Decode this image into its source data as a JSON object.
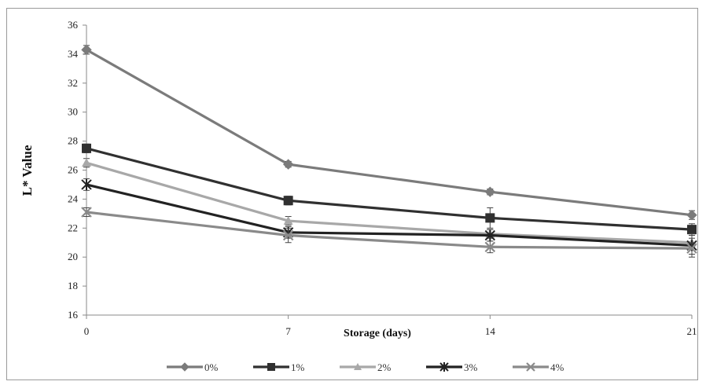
{
  "chart_data": {
    "type": "line",
    "title": "",
    "xlabel": "Storage (days)",
    "ylabel": "L* Value",
    "x": [
      0,
      7,
      14,
      21
    ],
    "x_tick_labels": [
      "0",
      "7",
      "14",
      "21"
    ],
    "ylim": [
      16,
      36
    ],
    "y_ticks": [
      16,
      18,
      20,
      22,
      24,
      26,
      28,
      30,
      32,
      34,
      36
    ],
    "grid": false,
    "legend_position": "bottom",
    "series": [
      {
        "name": "0%",
        "values": [
          34.3,
          26.4,
          24.5,
          22.9
        ],
        "errors": [
          0.3,
          0.2,
          0.2,
          0.3
        ],
        "color": "#7b7b7b",
        "marker": "diamond"
      },
      {
        "name": "1%",
        "values": [
          27.5,
          23.9,
          22.7,
          21.9
        ],
        "errors": [
          0.3,
          0.3,
          0.7,
          0.4
        ],
        "color": "#303030",
        "marker": "square"
      },
      {
        "name": "2%",
        "values": [
          26.5,
          22.5,
          21.6,
          21.0
        ],
        "errors": [
          0.3,
          0.3,
          0.3,
          0.3
        ],
        "color": "#a8a8a8",
        "marker": "triangle"
      },
      {
        "name": "3%",
        "values": [
          25.0,
          21.7,
          21.5,
          20.8
        ],
        "errors": [
          0.4,
          0.4,
          0.4,
          0.8
        ],
        "color": "#222222",
        "marker": "star"
      },
      {
        "name": "4%",
        "values": [
          23.1,
          21.5,
          20.7,
          20.6
        ],
        "errors": [
          0.3,
          0.5,
          0.4,
          0.4
        ],
        "color": "#8a8a8a",
        "marker": "x"
      }
    ]
  }
}
